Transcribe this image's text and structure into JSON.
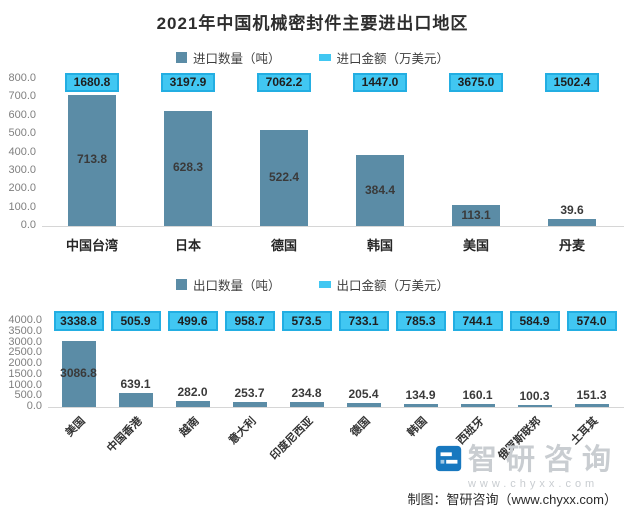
{
  "title": "2021年中国机械密封件主要进出口地区",
  "colors": {
    "bar": "#5b8ca6",
    "amount_fill": "#41c7f2",
    "amount_border": "#23aee2",
    "axis_text": "#7f7f7f",
    "watermark": "#c9cdd1",
    "logo_blue": "#1878bf"
  },
  "chart_data": [
    {
      "type": "bar",
      "title": "进口",
      "categories": [
        "中国台湾",
        "日本",
        "德国",
        "韩国",
        "美国",
        "丹麦"
      ],
      "series": [
        {
          "name": "进口数量（吨）",
          "values": [
            713.8,
            628.3,
            522.4,
            384.4,
            113.1,
            39.6
          ]
        },
        {
          "name": "进口金额（万美元）",
          "values": [
            1680.8,
            3197.9,
            7062.2,
            1447.0,
            3675.0,
            1502.4
          ]
        }
      ],
      "xlabel": "",
      "ylabel": "",
      "ylim": [
        0,
        800
      ],
      "ytick_step": 100,
      "grid": false,
      "legend_position": "top",
      "xlabel_rotation": 0
    },
    {
      "type": "bar",
      "title": "出口",
      "categories": [
        "美国",
        "中国香港",
        "越南",
        "意大利",
        "印度尼西亚",
        "德国",
        "韩国",
        "西班牙",
        "俄罗斯联邦",
        "土耳其"
      ],
      "series": [
        {
          "name": "出口数量（吨）",
          "values": [
            3086.8,
            639.1,
            282.0,
            253.7,
            234.8,
            205.4,
            134.9,
            160.1,
            100.3,
            151.3
          ]
        },
        {
          "name": "出口金额（万美元）",
          "values": [
            3338.8,
            505.9,
            499.6,
            958.7,
            573.5,
            733.1,
            785.3,
            744.1,
            584.9,
            574.0
          ]
        }
      ],
      "xlabel": "",
      "ylabel": "",
      "ylim": [
        0,
        4000
      ],
      "ytick_step": 500,
      "grid": false,
      "legend_position": "top",
      "xlabel_rotation": -45
    }
  ],
  "watermark": {
    "brand": "智研咨询",
    "url": "www.chyxx.com"
  },
  "footer": {
    "credit": "制图：智研咨询（www.chyxx.com）"
  }
}
